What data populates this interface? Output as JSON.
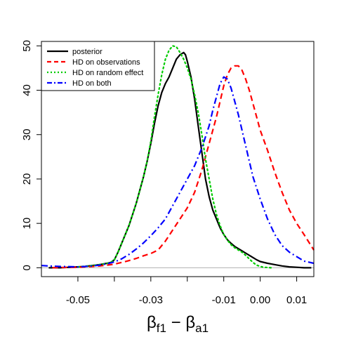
{
  "chart_data": {
    "type": "line",
    "xlabel_main": "β",
    "xlabel_sub1": "f1",
    "xlabel_minus": " − ",
    "xlabel_sub2": "a1",
    "ylabel": "",
    "xlim": [
      -0.06,
      0.0147
    ],
    "ylim": [
      -2,
      51
    ],
    "x_ticks": [
      -0.05,
      -0.04,
      -0.03,
      -0.02,
      -0.01,
      0.0,
      0.01
    ],
    "x_tick_labels": [
      "-0.05",
      "",
      "-0.03",
      "",
      "-0.01",
      "0.00",
      "0.01"
    ],
    "y_ticks": [
      0,
      10,
      20,
      30,
      40,
      50
    ],
    "y_tick_labels": [
      "0",
      "10",
      "20",
      "30",
      "40",
      "50"
    ],
    "legend_position": "top-left",
    "series": [
      {
        "name": "posterior",
        "color": "#000000",
        "dash": "solid",
        "x": [
          -0.058,
          -0.055,
          -0.05,
          -0.048,
          -0.046,
          -0.044,
          -0.042,
          -0.041,
          -0.04,
          -0.039,
          -0.038,
          -0.036,
          -0.034,
          -0.032,
          -0.031,
          -0.03,
          -0.029,
          -0.028,
          -0.027,
          -0.026,
          -0.025,
          -0.024,
          -0.023,
          -0.022,
          -0.021,
          -0.0205,
          -0.02,
          -0.019,
          -0.018,
          -0.017,
          -0.016,
          -0.015,
          -0.014,
          -0.013,
          -0.012,
          -0.011,
          -0.01,
          -0.009,
          -0.008,
          -0.007,
          -0.006,
          -0.005,
          -0.004,
          -0.003,
          -0.002,
          -0.001,
          0.0,
          0.002,
          0.004,
          0.006,
          0.008,
          0.01,
          0.012,
          0.014
        ],
        "y": [
          0,
          0,
          0.2,
          0.3,
          0.5,
          0.7,
          1.0,
          1.2,
          1.8,
          3.5,
          5.5,
          9.5,
          14.5,
          20.5,
          24,
          28,
          32.5,
          36.5,
          39.5,
          41.5,
          43,
          45,
          47,
          48,
          48.5,
          48,
          46.5,
          43,
          38,
          32,
          26,
          20,
          16,
          13,
          11,
          9,
          7.5,
          6.3,
          5.5,
          4.8,
          4.3,
          3.8,
          3.3,
          2.8,
          2.3,
          1.8,
          1.4,
          1.0,
          0.7,
          0.4,
          0.2,
          0.1,
          0,
          0
        ]
      },
      {
        "name": "HD on observations",
        "color": "#ff0000",
        "dash": "dashed",
        "x": [
          -0.057,
          -0.055,
          -0.05,
          -0.048,
          -0.046,
          -0.044,
          -0.042,
          -0.04,
          -0.038,
          -0.036,
          -0.034,
          -0.032,
          -0.03,
          -0.028,
          -0.026,
          -0.024,
          -0.022,
          -0.02,
          -0.018,
          -0.016,
          -0.014,
          -0.012,
          -0.011,
          -0.01,
          -0.009,
          -0.008,
          -0.007,
          -0.006,
          -0.005,
          -0.004,
          -0.003,
          -0.002,
          -0.001,
          0.0,
          0.002,
          0.004,
          0.006,
          0.008,
          0.01,
          0.012,
          0.0147
        ],
        "y": [
          0,
          0.05,
          0.1,
          0.2,
          0.3,
          0.4,
          0.6,
          0.8,
          1.2,
          1.6,
          2.1,
          2.7,
          3.2,
          4.0,
          6.0,
          8.5,
          11.0,
          13.5,
          17.0,
          22.0,
          28.0,
          34.0,
          37.5,
          41.0,
          43.5,
          45.0,
          45.5,
          45.5,
          44.5,
          42.5,
          40.0,
          37.0,
          34.0,
          31.0,
          26.5,
          21.5,
          17.0,
          13.0,
          10.0,
          7.5,
          4.0
        ]
      },
      {
        "name": "HD on random effect",
        "color": "#00cc00",
        "dash": "dotted",
        "x": [
          -0.05,
          -0.046,
          -0.044,
          -0.042,
          -0.041,
          -0.04,
          -0.039,
          -0.038,
          -0.036,
          -0.034,
          -0.032,
          -0.031,
          -0.03,
          -0.029,
          -0.028,
          -0.027,
          -0.026,
          -0.025,
          -0.024,
          -0.023,
          -0.022,
          -0.021,
          -0.02,
          -0.019,
          -0.018,
          -0.017,
          -0.016,
          -0.015,
          -0.014,
          -0.013,
          -0.012,
          -0.011,
          -0.01,
          -0.009,
          -0.008,
          -0.007,
          -0.006,
          -0.005,
          -0.004,
          -0.003,
          -0.002,
          -0.001,
          0.0,
          0.001,
          0.002,
          0.003
        ],
        "y": [
          0.2,
          0.5,
          0.7,
          1.0,
          1.2,
          1.8,
          3.5,
          5.5,
          9.5,
          14.5,
          20.5,
          24.0,
          28.5,
          34.0,
          39.0,
          43.5,
          47.0,
          49.0,
          50.0,
          49.8,
          48.5,
          47.0,
          45.0,
          42.5,
          39.0,
          35.0,
          30.0,
          24.5,
          20.0,
          15.5,
          12.0,
          9.5,
          7.5,
          6.2,
          5.2,
          4.5,
          4.0,
          3.5,
          2.8,
          2.0,
          1.2,
          0.6,
          0.3,
          0.1,
          0.05,
          0
        ]
      },
      {
        "name": "HD on both",
        "color": "#0000ff",
        "dash": "dashdot",
        "x": [
          -0.06,
          -0.058,
          -0.055,
          -0.05,
          -0.048,
          -0.046,
          -0.044,
          -0.042,
          -0.04,
          -0.038,
          -0.036,
          -0.034,
          -0.032,
          -0.03,
          -0.028,
          -0.026,
          -0.024,
          -0.022,
          -0.02,
          -0.018,
          -0.016,
          -0.014,
          -0.013,
          -0.012,
          -0.011,
          -0.01,
          -0.009,
          -0.008,
          -0.007,
          -0.006,
          -0.005,
          -0.004,
          -0.003,
          -0.002,
          0.0,
          0.002,
          0.004,
          0.006,
          0.008,
          0.01,
          0.012,
          0.0147
        ],
        "y": [
          0.5,
          0.4,
          0.3,
          0.2,
          0.3,
          0.4,
          0.6,
          0.9,
          1.3,
          2.0,
          3.0,
          4.2,
          5.6,
          7.2,
          9.0,
          11.0,
          14.0,
          17.0,
          20.0,
          23.0,
          27.0,
          32.0,
          35.5,
          38.5,
          41.5,
          43.0,
          42.5,
          40.5,
          37.5,
          34.5,
          31.0,
          27.5,
          24.0,
          20.5,
          15.5,
          11.0,
          7.5,
          5.0,
          3.5,
          2.5,
          1.5,
          1.0
        ]
      }
    ]
  }
}
